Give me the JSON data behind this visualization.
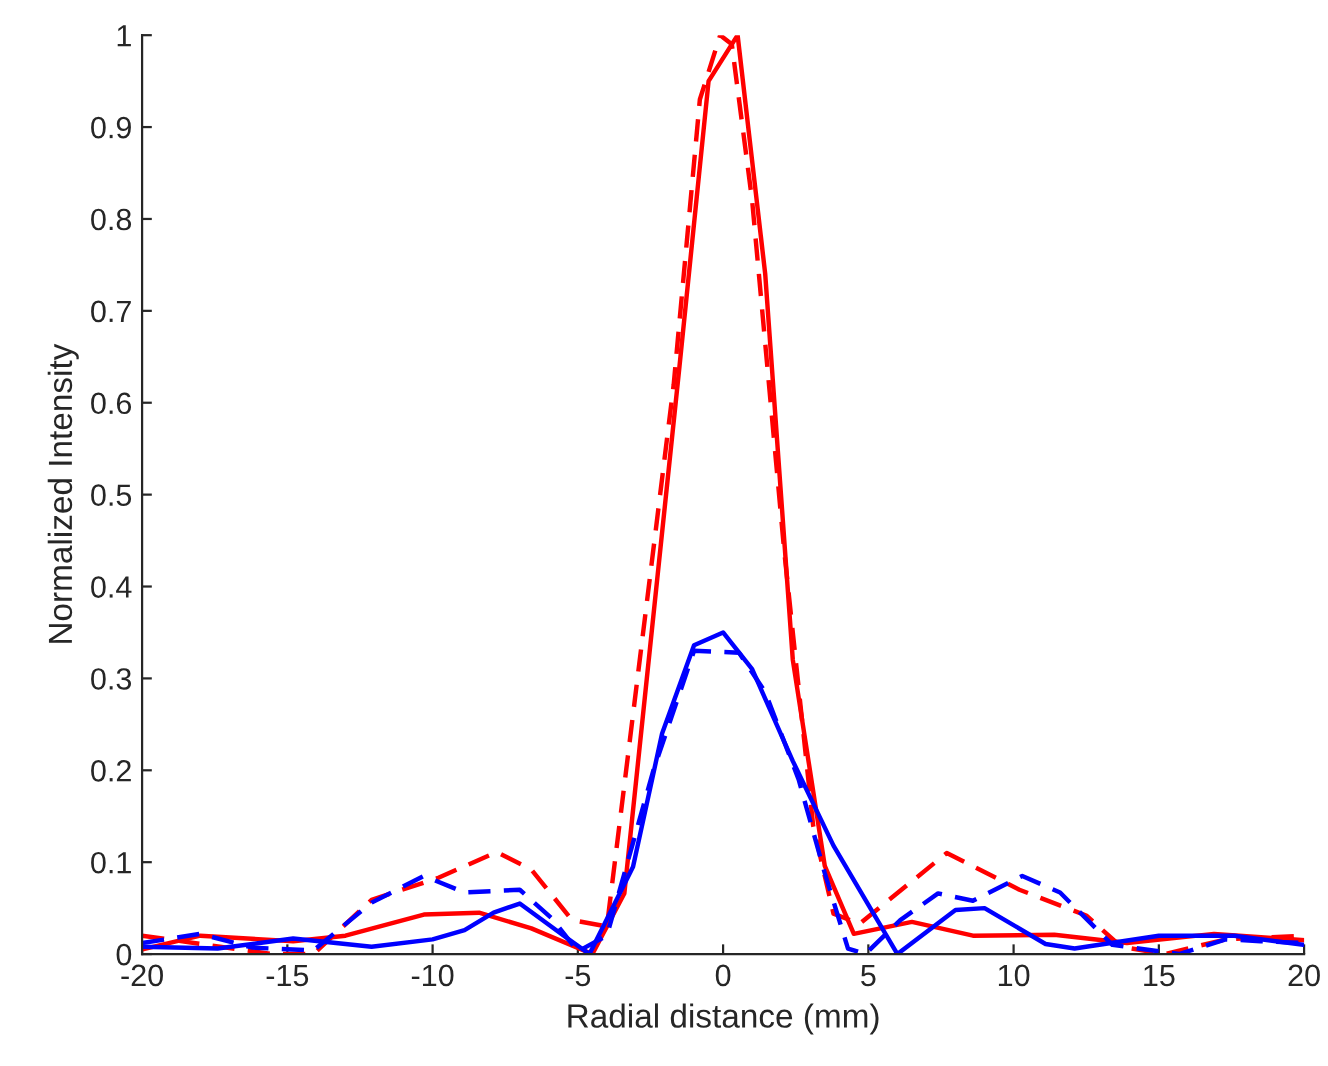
{
  "chart_data": {
    "type": "line",
    "xlabel": "Radial distance (mm)",
    "ylabel": "Normalized Intensity",
    "xlim": [
      -20,
      20
    ],
    "ylim": [
      0,
      1
    ],
    "xticks": [
      -20,
      -15,
      -10,
      -5,
      0,
      5,
      10,
      15,
      20
    ],
    "yticks": [
      0,
      0.1,
      0.2,
      0.3,
      0.4,
      0.5,
      0.6,
      0.7,
      0.8,
      0.9,
      1
    ],
    "grid": false,
    "legend": false,
    "marker": "none",
    "series": [
      {
        "color": "#ff0000",
        "line_style": "solid",
        "x": [
          -20,
          -18,
          -14.8,
          -13,
          -10.3,
          -8.4,
          -6.6,
          -4.5,
          -3.4,
          -1.5,
          -0.5,
          0.5,
          1.45,
          2.4,
          3.5,
          4.5,
          6.5,
          8.6,
          11.4,
          13.9,
          16.9,
          20
        ],
        "values": [
          0.005,
          0.02,
          0.014,
          0.02,
          0.043,
          0.045,
          0.028,
          0,
          0.066,
          0.64,
          0.95,
          1.0,
          0.74,
          0.32,
          0.096,
          0.022,
          0.035,
          0.02,
          0.021,
          0.012,
          0.022,
          0.015
        ]
      },
      {
        "color": "#ff0000",
        "line_style": "dashed",
        "x": [
          -20,
          -15.5,
          -14.1,
          -12.1,
          -9.8,
          -7.8,
          -6.6,
          -5.2,
          -4.0,
          -1.7,
          -0.8,
          -0.1,
          0.3,
          1.0,
          2.1,
          3.1,
          3.8,
          4.7,
          7.7,
          10.2,
          12.5,
          13.7,
          15.2,
          17.3,
          20
        ],
        "values": [
          0.02,
          0,
          0,
          0.059,
          0.083,
          0.111,
          0.092,
          0.037,
          0.03,
          0.62,
          0.93,
          1.0,
          0.99,
          0.82,
          0.44,
          0.14,
          0.044,
          0.033,
          0.11,
          0.07,
          0.042,
          0.008,
          0,
          0.016,
          0.02
        ]
      },
      {
        "color": "#0000ff",
        "line_style": "solid",
        "x": [
          -20,
          -17.4,
          -14.8,
          -12.1,
          -10,
          -8.9,
          -7.9,
          -7.0,
          -5.4,
          -4.6,
          -3.1,
          -2.1,
          -1.0,
          0,
          1.0,
          2.4,
          3.8,
          6.0,
          8.0,
          9.0,
          11.1,
          12.1,
          15,
          17.6,
          20
        ],
        "values": [
          0.008,
          0.006,
          0.017,
          0.008,
          0.016,
          0.026,
          0.045,
          0.055,
          0.018,
          0,
          0.095,
          0.24,
          0.336,
          0.35,
          0.31,
          0.21,
          0.118,
          0,
          0.048,
          0.05,
          0.011,
          0.006,
          0.02,
          0.02,
          0.01
        ]
      },
      {
        "color": "#0000ff",
        "line_style": "dashed",
        "x": [
          -20,
          -18,
          -16.2,
          -14.1,
          -12.1,
          -10.3,
          -8.9,
          -7,
          -5.9,
          -5,
          -4,
          -2.4,
          -1,
          0.55,
          1.45,
          2.6,
          3.5,
          4.3,
          4.9,
          6.1,
          7.4,
          8.6,
          10.3,
          11.6,
          13.4,
          15.7,
          17.3,
          18.5,
          20
        ],
        "values": [
          0.012,
          0.022,
          0.007,
          0.004,
          0.056,
          0.085,
          0.067,
          0.07,
          0.039,
          0.003,
          0.02,
          0.2,
          0.33,
          0.328,
          0.285,
          0.19,
          0.088,
          0.006,
          0,
          0.037,
          0.066,
          0.058,
          0.085,
          0.067,
          0.01,
          0,
          0.016,
          0.014,
          0.012
        ]
      }
    ]
  }
}
